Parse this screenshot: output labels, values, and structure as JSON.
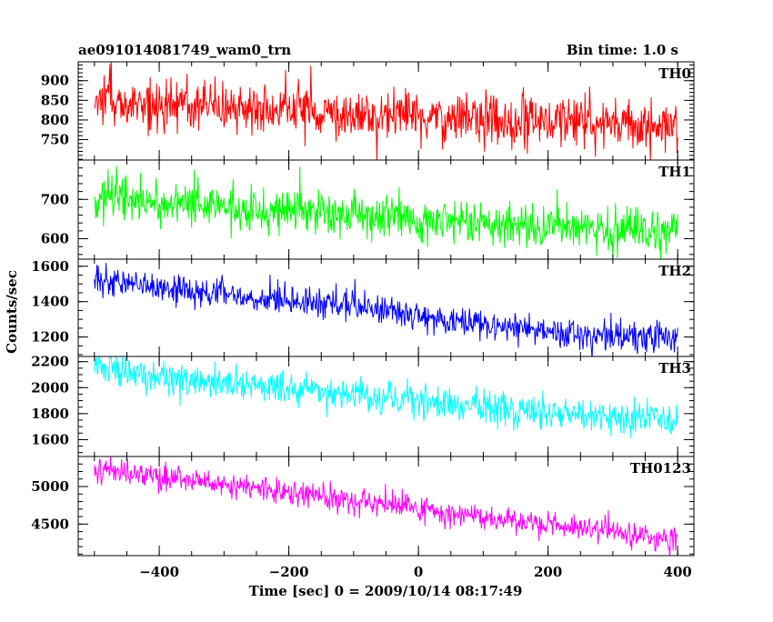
{
  "header": {
    "title": "ae091014081749_wam0_trn",
    "bin_time": "Bin time: 1.0 s"
  },
  "colors": {
    "TH0": "#ff0000",
    "TH1": "#00ff00",
    "TH2": "#0000ff",
    "TH3": "#00ffff",
    "TH0123": "#ff00ff"
  },
  "chart_data": {
    "type": "line",
    "title": "ae091014081749_wam0_trn",
    "subtitle": "Bin time: 1.0 s",
    "xlabel": "Time [sec] 0 = 2009/10/14 08:17:49",
    "ylabel": "Counts/sec",
    "xlim": [
      -525,
      425
    ],
    "x_ticks": [
      -400,
      -200,
      0,
      200,
      400
    ],
    "x_tick_labels": [
      "−400",
      "−200",
      "0",
      "200",
      "400"
    ],
    "x_minor_step": 50,
    "data_x_range": [
      -500,
      400
    ],
    "bin_time": 1.0,
    "panels": [
      {
        "name": "TH0",
        "color": "#ff0000",
        "ylim": [
          698,
          948
        ],
        "y_ticks": [
          750,
          800,
          850,
          900
        ],
        "y_tick_labels": [
          "750",
          "800",
          "850",
          "900"
        ],
        "y_minor_step": 10,
        "trend": [
          {
            "x": -500,
            "y": 850
          },
          {
            "x": 0,
            "y": 810
          },
          {
            "x": 400,
            "y": 780
          }
        ],
        "noise_sd": 34
      },
      {
        "name": "TH1",
        "color": "#00ff00",
        "ylim": [
          548,
          800
        ],
        "y_ticks": [
          600,
          700
        ],
        "y_tick_labels": [
          "600",
          "700"
        ],
        "y_minor_step": 20,
        "trend": [
          {
            "x": -500,
            "y": 705
          },
          {
            "x": 0,
            "y": 650
          },
          {
            "x": 400,
            "y": 612
          }
        ],
        "noise_sd": 30
      },
      {
        "name": "TH2",
        "color": "#0000ff",
        "ylim": [
          1090,
          1640
        ],
        "y_ticks": [
          1200,
          1400,
          1600
        ],
        "y_tick_labels": [
          "1200",
          "1400",
          "1600"
        ],
        "y_minor_step": 50,
        "trend": [
          {
            "x": -500,
            "y": 1520
          },
          {
            "x": -300,
            "y": 1440
          },
          {
            "x": -100,
            "y": 1370
          },
          {
            "x": 100,
            "y": 1270
          },
          {
            "x": 400,
            "y": 1175
          }
        ],
        "noise_sd": 42
      },
      {
        "name": "TH3",
        "color": "#00ffff",
        "ylim": [
          1470,
          2240
        ],
        "y_ticks": [
          1600,
          1800,
          2000,
          2200
        ],
        "y_tick_labels": [
          "1600",
          "1800",
          "2000",
          "2200"
        ],
        "y_minor_step": 50,
        "trend": [
          {
            "x": -500,
            "y": 2150
          },
          {
            "x": -200,
            "y": 1990
          },
          {
            "x": 100,
            "y": 1850
          },
          {
            "x": 400,
            "y": 1750
          }
        ],
        "noise_sd": 65
      },
      {
        "name": "TH0123",
        "color": "#ff00ff",
        "ylim": [
          4080,
          5400
        ],
        "y_ticks": [
          4500,
          5000
        ],
        "y_tick_labels": [
          "4500",
          "5000"
        ],
        "y_minor_step": 100,
        "trend": [
          {
            "x": -500,
            "y": 5230
          },
          {
            "x": -200,
            "y": 4930
          },
          {
            "x": 100,
            "y": 4580
          },
          {
            "x": 400,
            "y": 4300
          }
        ],
        "noise_sd": 85
      }
    ]
  }
}
